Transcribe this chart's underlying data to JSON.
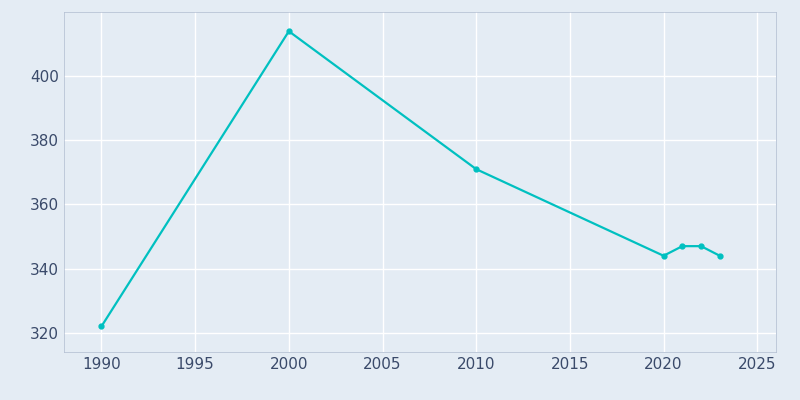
{
  "years": [
    1990,
    2000,
    2010,
    2020,
    2021,
    2022,
    2023
  ],
  "population": [
    322,
    414,
    371,
    344,
    347,
    347,
    344
  ],
  "line_color": "#00c0c0",
  "marker_color": "#00c0c0",
  "plot_bg_color": "#e4ecf4",
  "fig_bg_color": "#e4ecf4",
  "grid_color": "#ffffff",
  "xlim": [
    1988,
    2026
  ],
  "ylim": [
    314,
    420
  ],
  "xticks": [
    1990,
    1995,
    2000,
    2005,
    2010,
    2015,
    2020,
    2025
  ],
  "yticks": [
    320,
    340,
    360,
    380,
    400
  ],
  "marker_size": 3.5,
  "line_width": 1.6,
  "tick_labelsize": 11,
  "tick_labelcolor": "#3a4a6a",
  "spine_color": "#b0bcd0"
}
